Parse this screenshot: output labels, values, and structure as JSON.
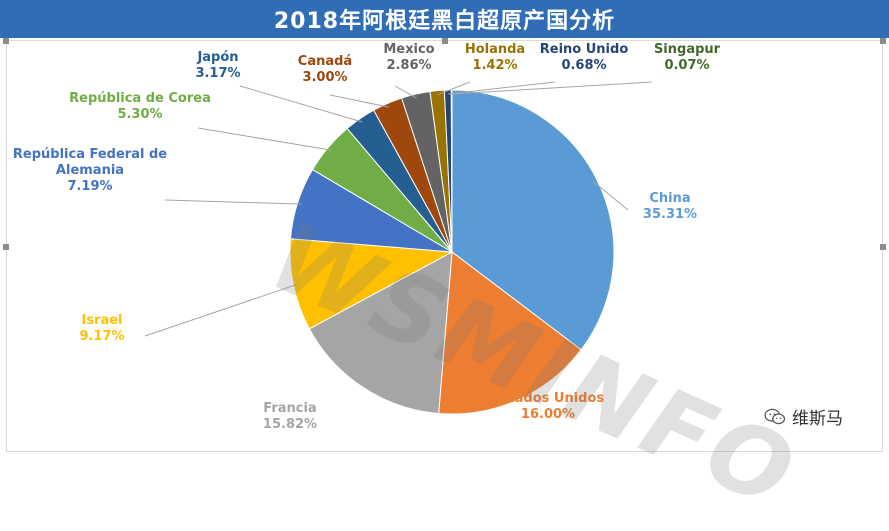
{
  "chart_data": {
    "type": "pie",
    "title": "2018年阿根廷黑白超原产国分析",
    "slices": [
      {
        "name": "China",
        "value": 35.31,
        "label": "35.31%",
        "color": "#5b9bd5"
      },
      {
        "name": "Estados Unidos",
        "value": 16.0,
        "label": "16.00%",
        "color": "#ed7d31"
      },
      {
        "name": "Francia",
        "value": 15.82,
        "label": "15.82%",
        "color": "#a5a5a5"
      },
      {
        "name": "Israel",
        "value": 9.17,
        "label": "9.17%",
        "color": "#ffc000"
      },
      {
        "name": "República Federal de Alemania",
        "value": 7.19,
        "label": "7.19%",
        "color": "#4472c4"
      },
      {
        "name": "República de Corea",
        "value": 5.3,
        "label": "5.30%",
        "color": "#70ad47"
      },
      {
        "name": "Japón",
        "value": 3.17,
        "label": "3.17%",
        "color": "#255e91"
      },
      {
        "name": "Canadá",
        "value": 3.0,
        "label": "3.00%",
        "color": "#9e480e"
      },
      {
        "name": "Mexico",
        "value": 2.86,
        "label": "2.86%",
        "color": "#636363"
      },
      {
        "name": "Holanda",
        "value": 1.42,
        "label": "1.42%",
        "color": "#997300"
      },
      {
        "name": "Reino Unido",
        "value": 0.68,
        "label": "0.68%",
        "color": "#264478"
      },
      {
        "name": "Singapur",
        "value": 0.07,
        "label": "0.07%",
        "color": "#43682b"
      }
    ]
  },
  "watermark": "WSMINFO",
  "brand": {
    "name": "维斯马",
    "icon": "wechat-icon"
  },
  "colors": {
    "title_bar": "#2f6db5",
    "title_text": "#ffffff"
  }
}
